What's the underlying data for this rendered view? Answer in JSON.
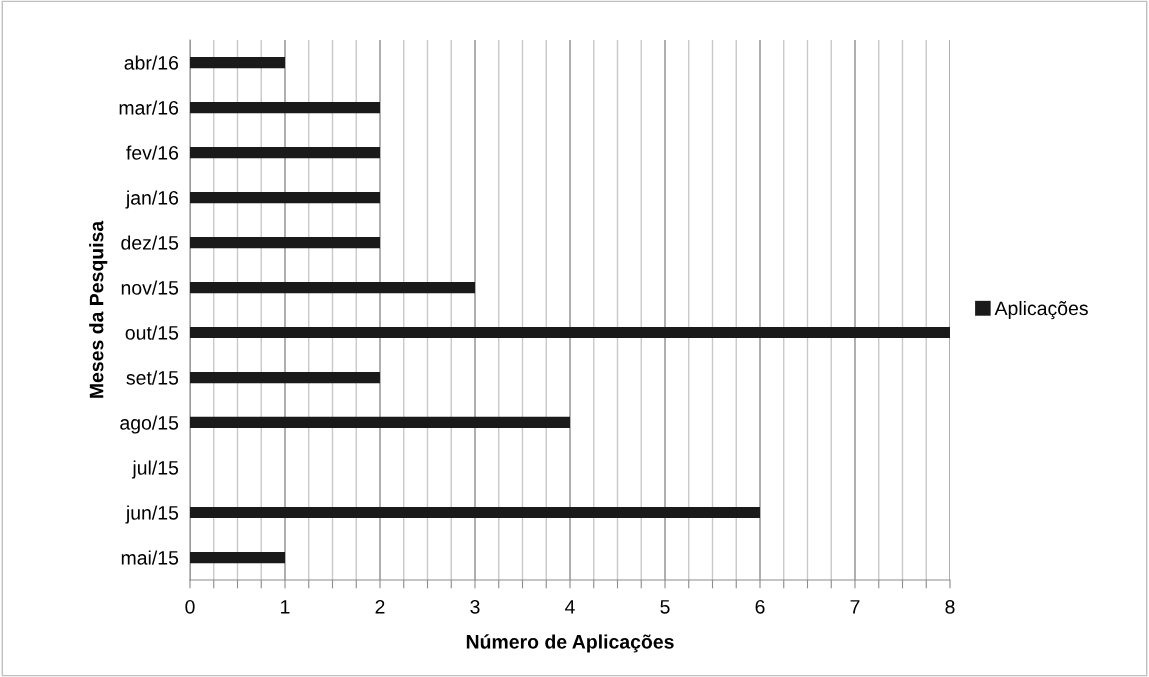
{
  "chart_data": {
    "type": "bar",
    "orientation": "horizontal",
    "xlabel": "Número de Aplicações",
    "ylabel": "Meses da Pesquisa",
    "categories": [
      "abr/16",
      "mar/16",
      "fev/16",
      "jan/16",
      "dez/15",
      "nov/15",
      "out/15",
      "set/15",
      "ago/15",
      "jul/15",
      "jun/15",
      "mai/15"
    ],
    "series": [
      {
        "name": "Aplicações",
        "color": "#1a1a1a",
        "values": [
          1,
          2,
          2,
          2,
          2,
          3,
          8,
          2,
          4,
          0,
          6,
          1
        ]
      }
    ],
    "xlim": [
      0,
      8
    ],
    "xticks": [
      0,
      {
        "value": 0.25,
        "label": null
      },
      {
        "value": 0.5,
        "label": null
      },
      {
        "value": 0.75,
        "label": null
      },
      1,
      {
        "value": 1.25,
        "label": null
      },
      {
        "value": 1.5,
        "label": null
      },
      {
        "value": 1.75,
        "label": null
      },
      2,
      {
        "value": 2.25,
        "label": null
      },
      {
        "value": 2.5,
        "label": null
      },
      {
        "value": 2.75,
        "label": null
      },
      3,
      {
        "value": 3.25,
        "label": null
      },
      {
        "value": 3.5,
        "label": null
      },
      {
        "value": 3.75,
        "label": null
      },
      4,
      {
        "value": 4.25,
        "label": null
      },
      {
        "value": 4.5,
        "label": null
      },
      {
        "value": 4.75,
        "label": null
      },
      5,
      {
        "value": 5.25,
        "label": null
      },
      {
        "value": 5.5,
        "label": null
      },
      {
        "value": 5.75,
        "label": null
      },
      6,
      {
        "value": 6.25,
        "label": null
      },
      {
        "value": 6.5,
        "label": null
      },
      {
        "value": 6.75,
        "label": null
      },
      7,
      {
        "value": 7.25,
        "label": null
      },
      {
        "value": 7.5,
        "label": null
      },
      {
        "value": 7.75,
        "label": null
      },
      8
    ],
    "grid": "x",
    "legend": "right"
  }
}
